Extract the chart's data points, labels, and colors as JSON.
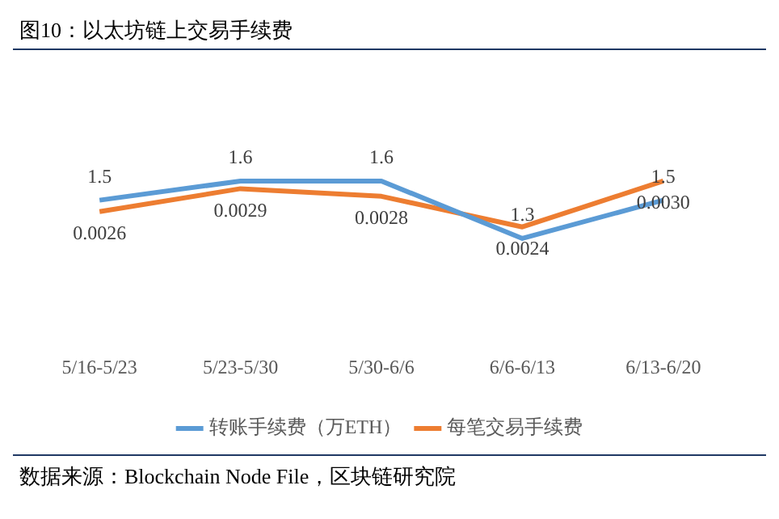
{
  "chart_data": {
    "type": "line",
    "title": "图10：以太坊链上交易手续费",
    "categories": [
      "5/16-5/23",
      "5/23-5/30",
      "5/30-6/6",
      "6/6-6/13",
      "6/13-6/20"
    ],
    "series": [
      {
        "name": "转账手续费（万ETH）",
        "color": "#5b9bd5",
        "values": [
          1.5,
          1.6,
          1.6,
          1.3,
          1.5
        ],
        "value_labels": [
          "1.5",
          "1.6",
          "1.6",
          "1.3",
          "1.5"
        ]
      },
      {
        "name": "每笔交易手续费",
        "color": "#ed7d31",
        "values": [
          0.0026,
          0.0029,
          0.0028,
          0.0024,
          0.003
        ],
        "value_labels": [
          "0.0026",
          "0.0029",
          "0.0028",
          "0.0024",
          "0.0030"
        ],
        "axis": "y2"
      }
    ],
    "tick_labels": "x",
    "grid": false,
    "legend": "bottom",
    "marker": "none",
    "line_style": "solid",
    "annotations": [
      "数据来源：Blockchain Node File，区块链研究院"
    ]
  }
}
